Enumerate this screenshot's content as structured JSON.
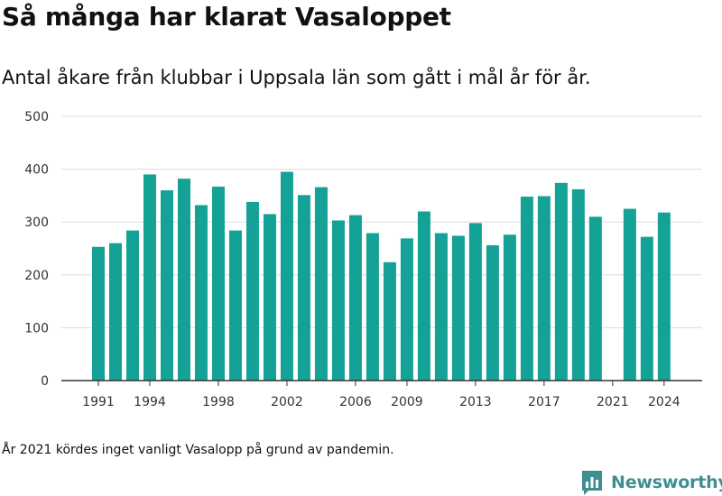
{
  "chart_data": {
    "type": "bar",
    "title": "Så många har klarat Vasaloppet",
    "subtitle": "Antal åkare från klubbar i Uppsala län som gått i mål år för år.",
    "xlabel": "",
    "ylabel": "",
    "ylim": [
      0,
      500
    ],
    "yticks": [
      "0",
      "100",
      "200",
      "300",
      "400",
      "500"
    ],
    "xticks": [
      "1991",
      "1994",
      "1998",
      "2002",
      "2006",
      "2009",
      "2013",
      "2017",
      "2021",
      "2024"
    ],
    "grid": true,
    "bar_color": "#14a196",
    "x": [
      1991,
      1992,
      1993,
      1994,
      1995,
      1996,
      1997,
      1998,
      1999,
      2000,
      2001,
      2002,
      2003,
      2004,
      2005,
      2006,
      2007,
      2008,
      2009,
      2010,
      2011,
      2012,
      2013,
      2014,
      2015,
      2016,
      2017,
      2018,
      2019,
      2020,
      2021,
      2022,
      2023,
      2024
    ],
    "values": [
      253,
      260,
      284,
      390,
      360,
      382,
      332,
      367,
      284,
      338,
      315,
      395,
      351,
      366,
      303,
      313,
      279,
      224,
      269,
      320,
      279,
      274,
      298,
      256,
      276,
      348,
      349,
      374,
      362,
      310,
      null,
      325,
      272,
      318
    ],
    "footnote": "År 2021 kördes inget vanligt Vasalopp på grund av pandemin."
  },
  "brand": {
    "name": "Newsworthy",
    "color": "#3f8f90"
  }
}
